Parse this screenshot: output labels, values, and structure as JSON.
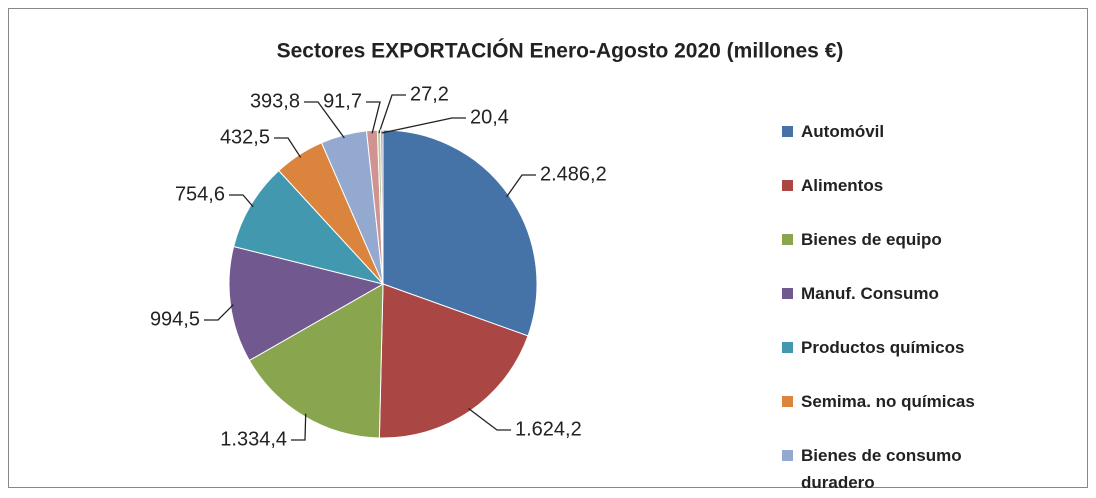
{
  "chart_data": {
    "type": "pie",
    "title": "Sectores EXPORTACIÓN Enero-Agosto 2020 (millones €)",
    "categories": [
      "Automóvil",
      "Alimentos",
      "Bienes de equipo",
      "Manuf. Consumo",
      "Productos químicos",
      "Semima. no químicas",
      "Bienes de consumo duradero",
      null,
      null,
      null
    ],
    "values": [
      2486.2,
      1624.2,
      1334.4,
      994.5,
      754.6,
      432.5,
      393.8,
      91.7,
      27.2,
      20.4
    ],
    "value_labels": [
      "2.486,2",
      "1.624,2",
      "1.334,4",
      "994,5",
      "754,6",
      "432,5",
      "393,8",
      "91,7",
      "27,2",
      "20,4"
    ],
    "colors": [
      "#4572a7",
      "#aa4643",
      "#89a54e",
      "#71588f",
      "#4198af",
      "#db843d",
      "#93a9cf",
      "#d19392",
      "#b9cd96",
      "#a99bbd"
    ]
  }
}
